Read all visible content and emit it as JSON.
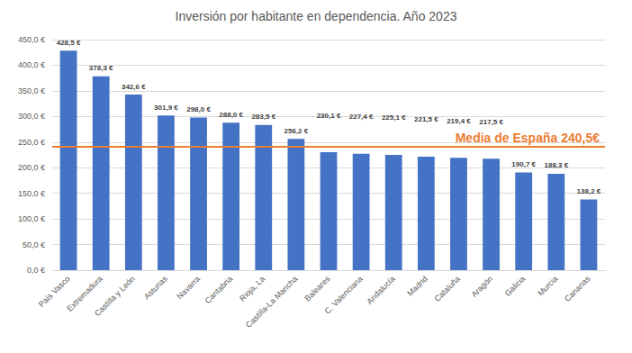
{
  "chart_data": {
    "type": "bar",
    "title": "Inversión por habitante en dependencia. Año 2023",
    "categories": [
      "País Vasco",
      "Extremadura",
      "Castilla y León",
      "Asturias",
      "Navarra",
      "Cantabria",
      "Rioja, La",
      "Castilla-La Mancha",
      "Baleares",
      "C. Valenciana",
      "Andalucía",
      "Madrid",
      "Cataluña",
      "Aragón",
      "Galicia",
      "Murcia",
      "Canarias"
    ],
    "values": [
      428.5,
      378.3,
      342.6,
      301.9,
      298.0,
      288.0,
      283.5,
      256.2,
      230.1,
      227.4,
      225.1,
      221.5,
      219.4,
      217.5,
      190.7,
      188.3,
      138.2
    ],
    "value_labels": [
      "428,5 €",
      "378,3 €",
      "342,6 €",
      "301,9 €",
      "298,0 €",
      "288,0 €",
      "283,5 €",
      "256,2 €",
      "230,1 €",
      "227,4 €",
      "225,1 €",
      "221,5 €",
      "219,4 €",
      "217,5 €",
      "190,7 €",
      "188,3 €",
      "138,2 €"
    ],
    "color": "#4472c4",
    "data_labels": true,
    "ylim": [
      0,
      450
    ],
    "yticks": [
      {
        "value": 0,
        "label": "0,0 €"
      },
      {
        "value": 50,
        "label": "50,0 €"
      },
      {
        "value": 100,
        "label": "100,0 €"
      },
      {
        "value": 150,
        "label": "150,0 €"
      },
      {
        "value": 200,
        "label": "200,0 €"
      },
      {
        "value": 250,
        "label": "250,0 €"
      },
      {
        "value": 300,
        "label": "300,0 €"
      },
      {
        "value": 350,
        "label": "350,0 €"
      },
      {
        "value": 400,
        "label": "400,0 €"
      },
      {
        "value": 450,
        "label": "450,0 €"
      }
    ],
    "grid": true,
    "annotations": [
      {
        "text": "Media de España 240,5€",
        "y": 240.5,
        "color": "#ed7d31"
      }
    ]
  }
}
